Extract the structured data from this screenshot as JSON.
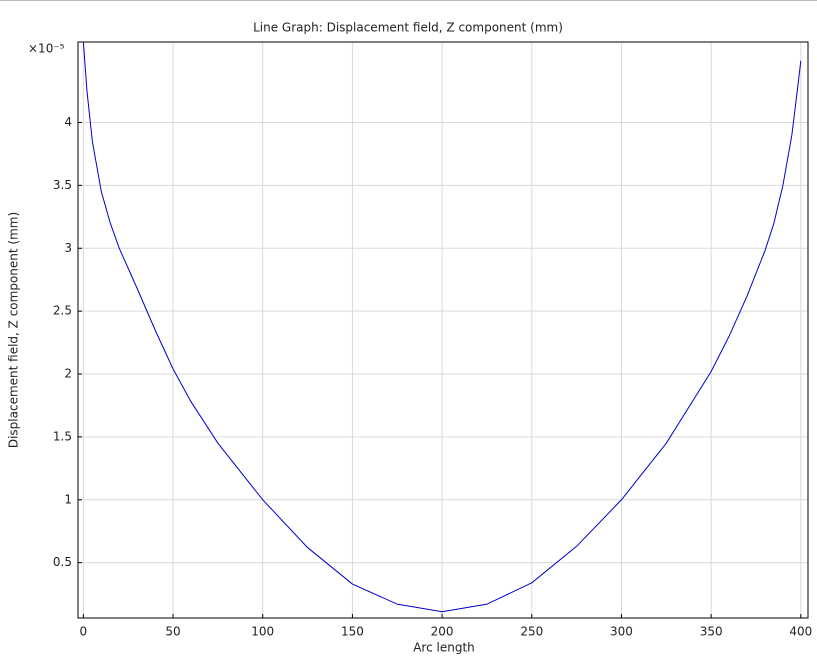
{
  "chart_data": {
    "type": "line",
    "title": "Line Graph: Displacement field, Z component (mm)",
    "x_label": "Arc length",
    "y_label": "Displacement field, Z component (mm)",
    "y_multiplier": "×10⁻⁵",
    "x": [
      0,
      2,
      5,
      10,
      15,
      20,
      30,
      40,
      50,
      60,
      75,
      100,
      125,
      150,
      175,
      200,
      225,
      250,
      275,
      300,
      325,
      350,
      360,
      370,
      380,
      385,
      390,
      395,
      398,
      400
    ],
    "series": [
      {
        "color": "#0000cc",
        "values": [
          4.64,
          4.25,
          3.85,
          3.45,
          3.2,
          3.0,
          2.68,
          2.35,
          2.04,
          1.78,
          1.45,
          1.0,
          0.62,
          0.33,
          0.17,
          0.11,
          0.17,
          0.34,
          0.63,
          1.0,
          1.45,
          2.02,
          2.3,
          2.62,
          2.98,
          3.2,
          3.5,
          3.9,
          4.25,
          4.49
        ]
      }
    ],
    "xlim": [
      -3,
      404
    ],
    "ylim": [
      0.06,
      4.64
    ],
    "xticks": [
      0,
      50,
      100,
      150,
      200,
      250,
      300,
      350,
      400
    ],
    "yticks": [
      0.5,
      1,
      1.5,
      2,
      2.5,
      3,
      3.5,
      4
    ],
    "grid": true
  }
}
